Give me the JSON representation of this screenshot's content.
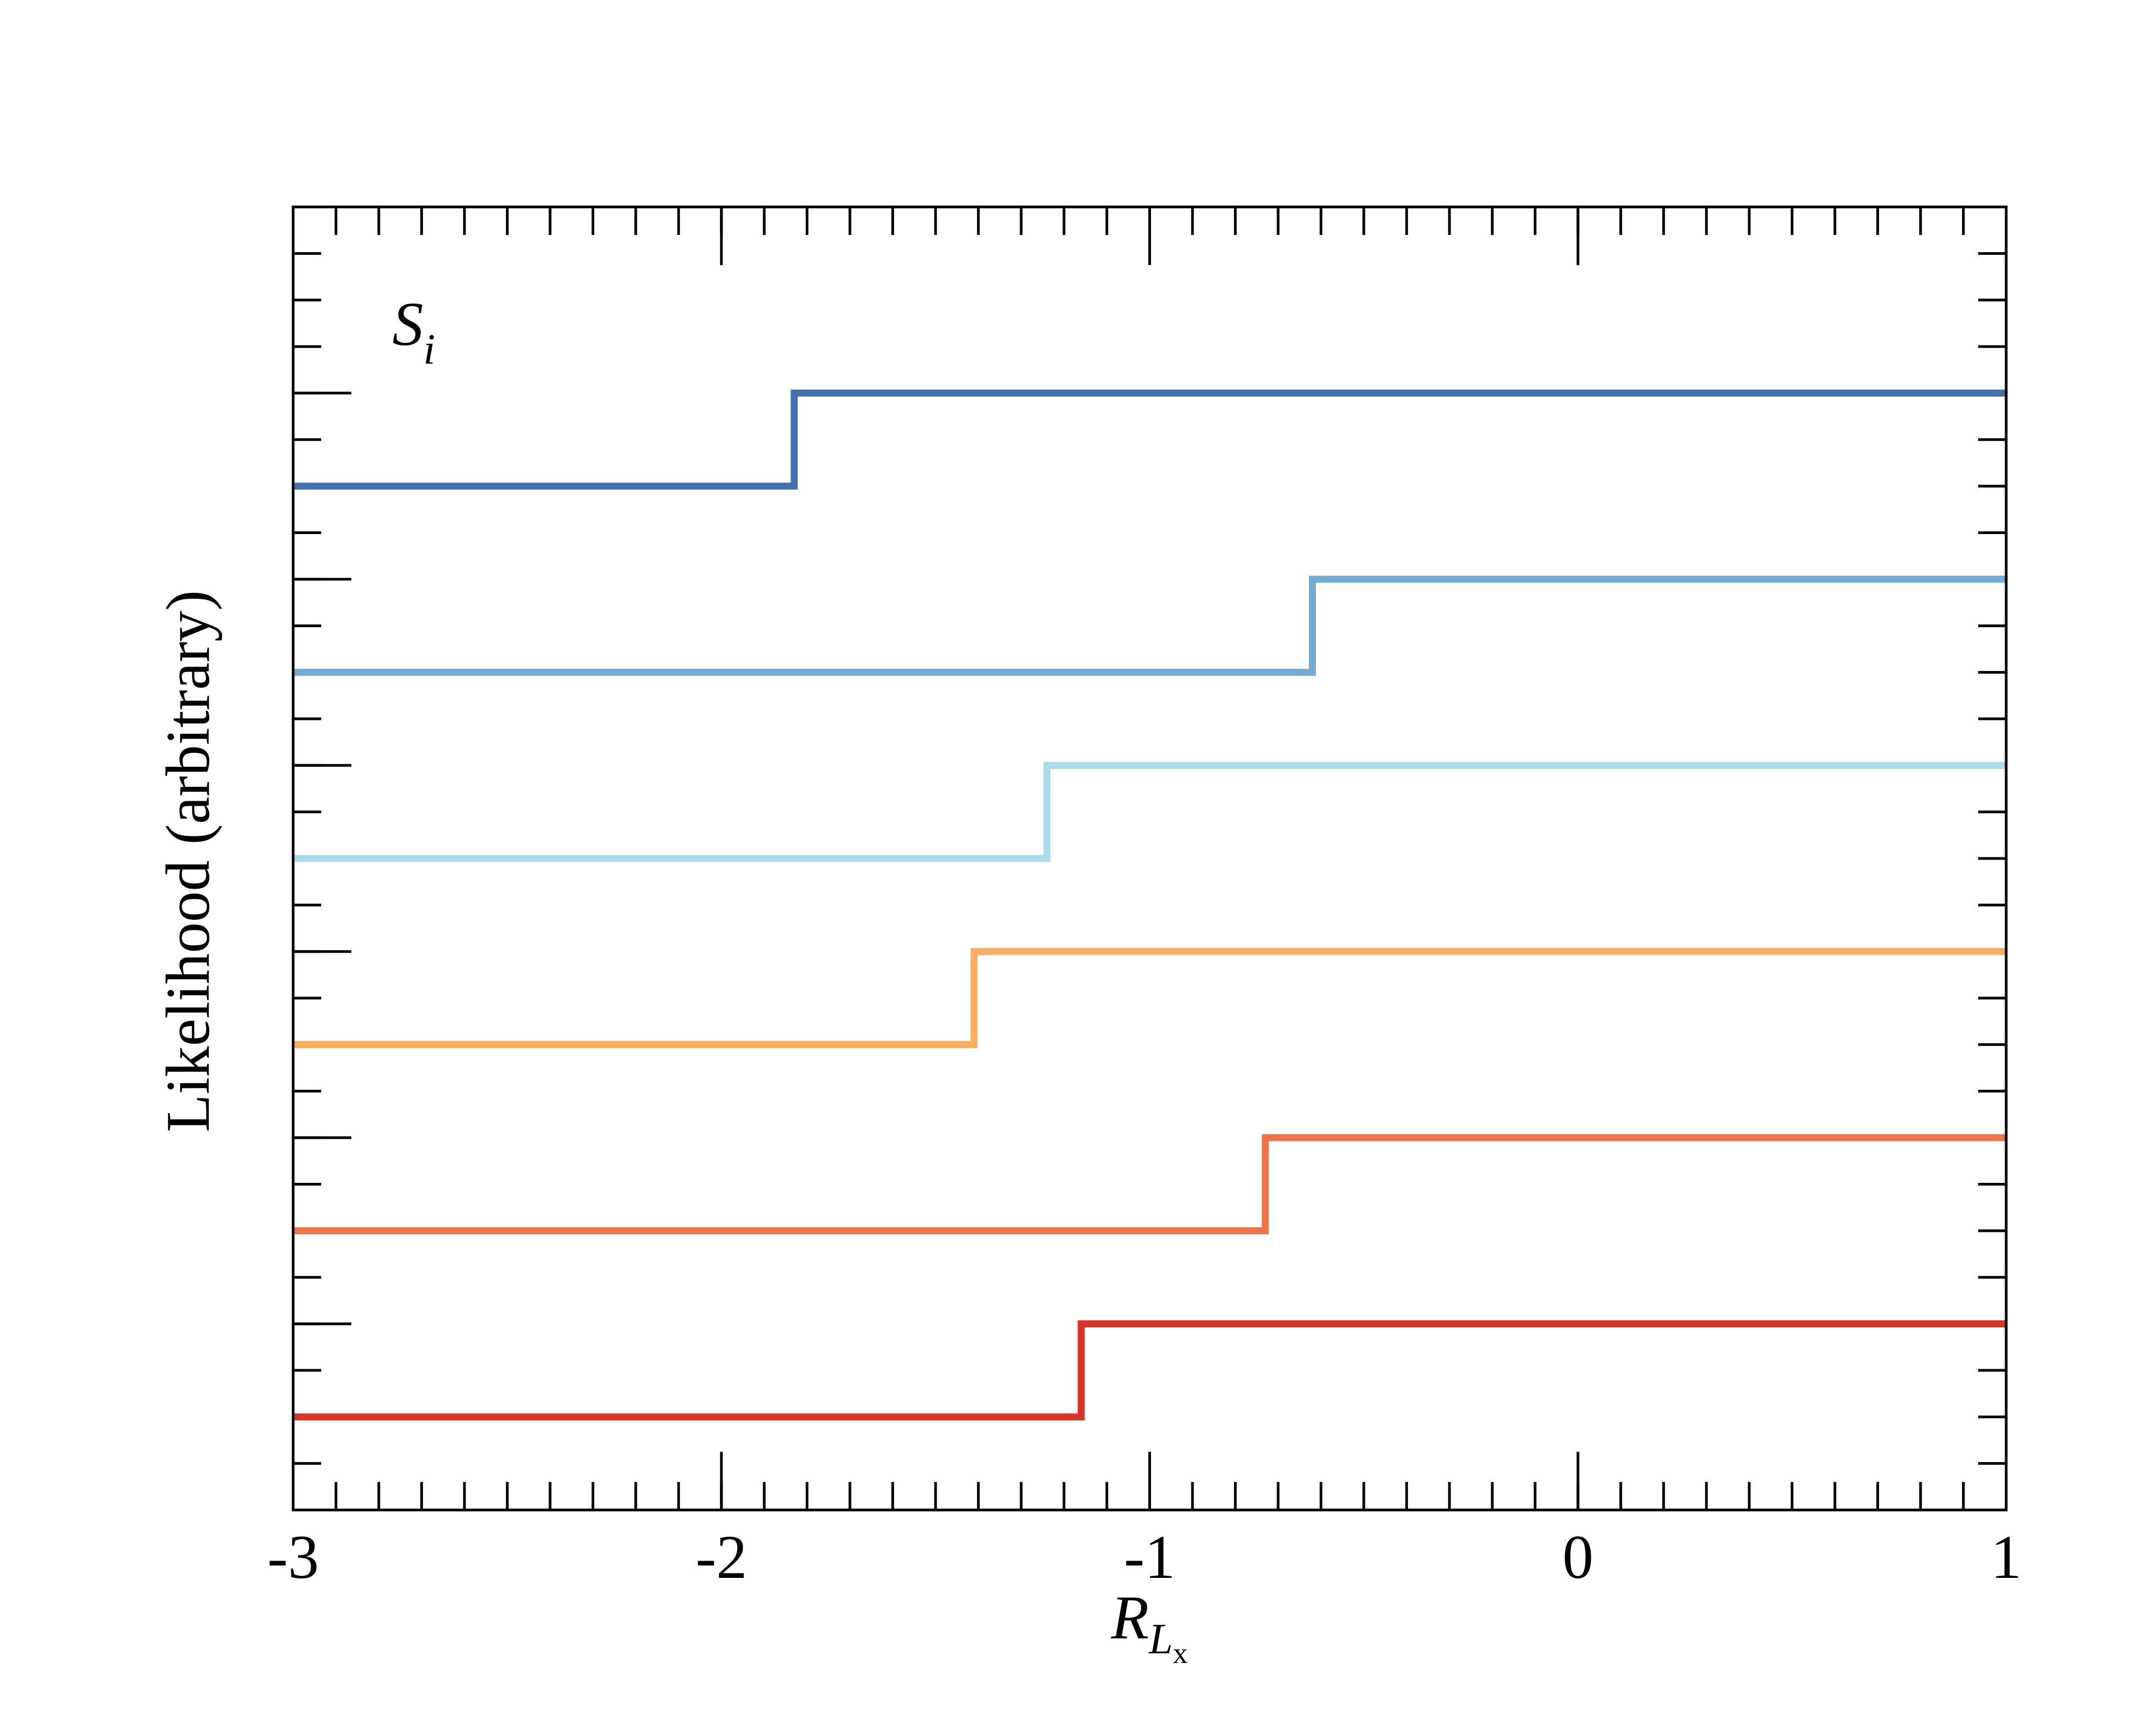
{
  "chart_data": {
    "type": "line",
    "xlabel": "R",
    "xlabel_sub": "L",
    "xlabel_subsub": "x",
    "ylabel": "Likelihood (arbitrary)",
    "annotation": "S",
    "annotation_sub": "i",
    "xlim": [
      -3,
      1
    ],
    "xticks": [
      -3,
      -2,
      -1,
      0,
      1
    ],
    "xminor_step": 0.1,
    "ylim": [
      0,
      28
    ],
    "yticks": [
      0,
      4,
      8,
      12,
      16,
      20,
      24,
      28
    ],
    "yminor_step": 1,
    "line_width": 13,
    "series": [
      {
        "color": "#4470b0",
        "x": [
          -3,
          -1.83,
          -1.83,
          1
        ],
        "values": [
          22,
          22,
          24,
          24
        ]
      },
      {
        "color": "#74abd0",
        "x": [
          -3,
          -0.62,
          -0.62,
          1
        ],
        "values": [
          18,
          18,
          20,
          20
        ]
      },
      {
        "color": "#abdbe8",
        "x": [
          -3,
          -1.24,
          -1.24,
          1
        ],
        "values": [
          14,
          14,
          16,
          16
        ]
      },
      {
        "color": "#f8ad60",
        "x": [
          -3,
          -1.41,
          -1.41,
          1
        ],
        "values": [
          10,
          10,
          12,
          12
        ]
      },
      {
        "color": "#f17148",
        "x": [
          -3,
          -0.73,
          -0.73,
          1
        ],
        "values": [
          6,
          6,
          8,
          8
        ]
      },
      {
        "color": "#d8342a",
        "x": [
          -3,
          -1.16,
          -1.16,
          1
        ],
        "values": [
          2,
          2,
          4,
          4
        ]
      }
    ]
  }
}
